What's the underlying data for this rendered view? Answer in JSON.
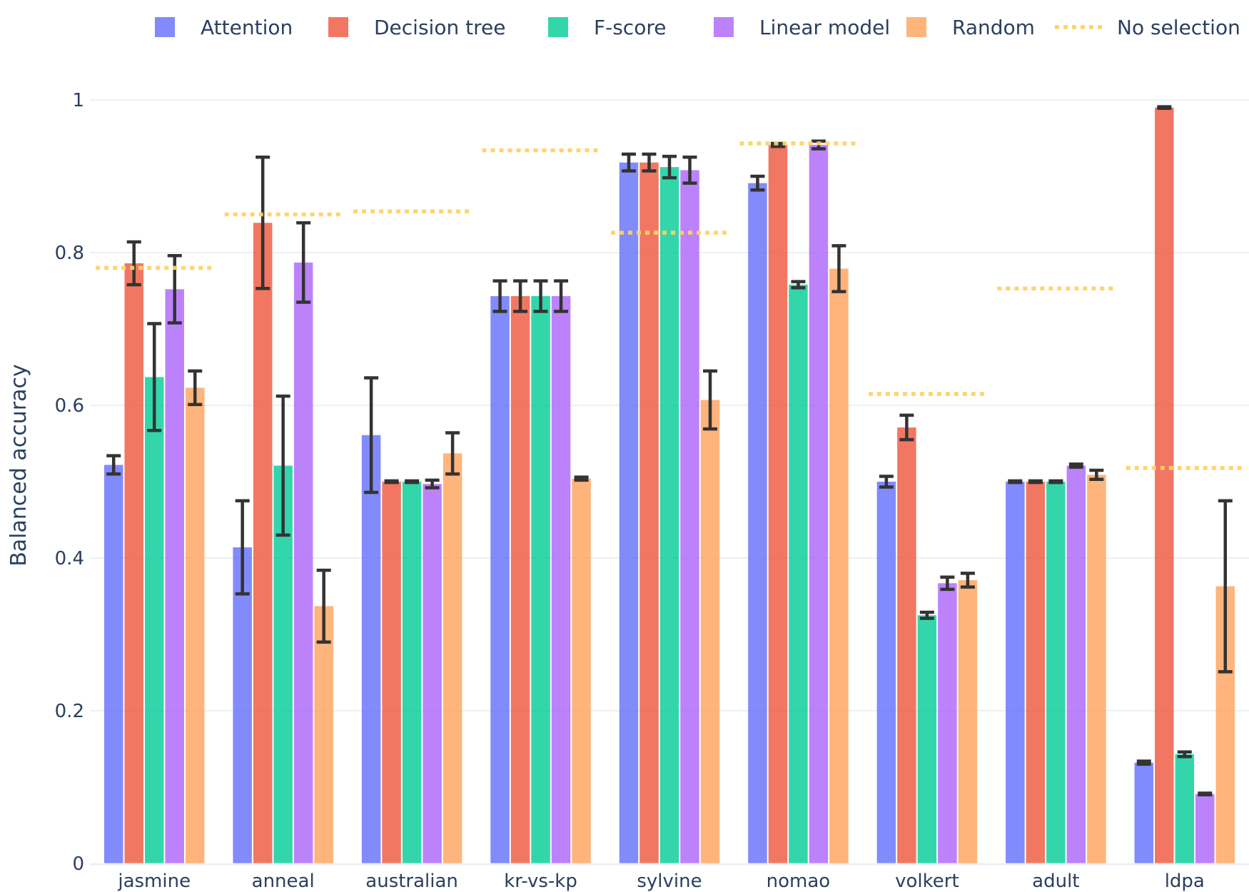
{
  "chart_data": {
    "type": "bar",
    "title": "",
    "xlabel": "",
    "ylabel": "Balanced accuracy",
    "ylim": [
      0,
      1.0
    ],
    "yticks": [
      0,
      0.2,
      0.4,
      0.6,
      0.8,
      1
    ],
    "ytick_labels": [
      "0",
      "0.2",
      "0.4",
      "0.6",
      "0.8",
      "1"
    ],
    "grid": true,
    "legend_position": "top",
    "categories": [
      "jasmine",
      "anneal",
      "australian",
      "kr-vs-kp",
      "sylvine",
      "nomao",
      "volkert",
      "adult",
      "ldpa"
    ],
    "series": [
      {
        "name": "Attention",
        "color": "#636efa",
        "values": [
          0.522,
          0.414,
          0.561,
          0.743,
          0.918,
          0.891,
          0.5,
          0.5,
          0.132
        ],
        "errors": [
          0.012,
          0.061,
          0.075,
          0.02,
          0.011,
          0.009,
          0.007,
          0.001,
          0.002
        ]
      },
      {
        "name": "Decision tree",
        "color": "#ef553b",
        "values": [
          0.786,
          0.839,
          0.5,
          0.743,
          0.918,
          0.941,
          0.571,
          0.5,
          0.99
        ],
        "errors": [
          0.028,
          0.086,
          0.001,
          0.02,
          0.011,
          0.002,
          0.016,
          0.001,
          0.001
        ]
      },
      {
        "name": "F-score",
        "color": "#00cc96",
        "values": [
          0.637,
          0.521,
          0.5,
          0.743,
          0.912,
          0.758,
          0.325,
          0.5,
          0.143
        ],
        "errors": [
          0.07,
          0.091,
          0.001,
          0.02,
          0.014,
          0.004,
          0.004,
          0.001,
          0.003
        ]
      },
      {
        "name": "Linear model",
        "color": "#ab63fa",
        "values": [
          0.752,
          0.787,
          0.497,
          0.743,
          0.908,
          0.941,
          0.367,
          0.521,
          0.091
        ],
        "errors": [
          0.044,
          0.052,
          0.005,
          0.02,
          0.017,
          0.005,
          0.008,
          0.002,
          0.001
        ]
      },
      {
        "name": "Random",
        "color": "#ffa15a",
        "values": [
          0.623,
          0.337,
          0.537,
          0.504,
          0.607,
          0.779,
          0.371,
          0.509,
          0.363
        ],
        "errors": [
          0.022,
          0.047,
          0.027,
          0.002,
          0.038,
          0.03,
          0.009,
          0.006,
          0.112
        ]
      }
    ],
    "reference_line": {
      "name": "No selection",
      "color": "#ffd166",
      "values": [
        0.78,
        0.85,
        0.854,
        0.934,
        0.826,
        0.943,
        0.615,
        0.753,
        0.518
      ]
    }
  }
}
